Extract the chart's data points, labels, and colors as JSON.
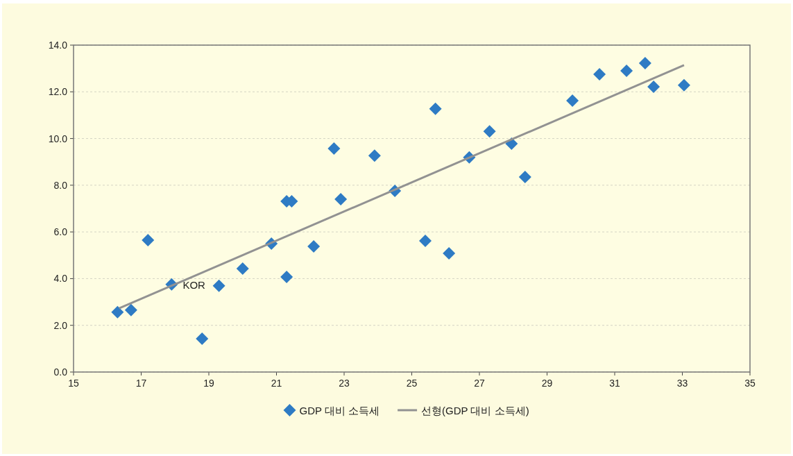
{
  "chart_data": {
    "type": "scatter",
    "xlim": [
      15,
      35
    ],
    "ylim": [
      0,
      14
    ],
    "xticks": [
      15,
      17,
      19,
      21,
      23,
      25,
      27,
      29,
      31,
      33,
      35
    ],
    "yticks": [
      {
        "value": 0,
        "label": "0.0"
      },
      {
        "value": 2,
        "label": "2.0"
      },
      {
        "value": 4,
        "label": "4.0"
      },
      {
        "value": 6,
        "label": "6.0"
      },
      {
        "value": 8,
        "label": "8.0"
      },
      {
        "value": 10,
        "label": "10.0"
      },
      {
        "value": 12,
        "label": "12.0"
      },
      {
        "value": 14,
        "label": "14.0"
      }
    ],
    "grid": "y",
    "legend": "bottom",
    "annotations": [
      {
        "text": "KOR",
        "x": 17.9,
        "y": 3.75
      }
    ],
    "series": [
      {
        "name": "GDP 대비 소득세",
        "type": "scatter",
        "marker": "diamond",
        "color": "#2e7bc4",
        "x": [
          16.3,
          16.7,
          17.2,
          17.9,
          18.8,
          19.3,
          20.0,
          20.85,
          21.3,
          21.45,
          21.3,
          22.1,
          22.7,
          22.9,
          23.9,
          24.5,
          25.4,
          25.7,
          26.1,
          26.7,
          27.3,
          27.95,
          28.35,
          29.75,
          30.55,
          31.35,
          31.9,
          32.15,
          33.05
        ],
        "values": [
          2.56,
          2.65,
          5.65,
          3.75,
          1.43,
          3.69,
          4.43,
          5.5,
          7.31,
          7.31,
          4.07,
          5.38,
          9.57,
          7.4,
          9.27,
          7.76,
          5.62,
          11.27,
          5.08,
          9.19,
          10.31,
          9.78,
          8.35,
          11.62,
          12.75,
          12.9,
          13.23,
          12.22,
          12.28
        ]
      },
      {
        "name": "선형(GDP 대비 소득세)",
        "type": "line",
        "line_style": "solid",
        "color": "#929292",
        "x": [
          16.35,
          33.05
        ],
        "values": [
          2.73,
          13.14
        ]
      }
    ]
  }
}
